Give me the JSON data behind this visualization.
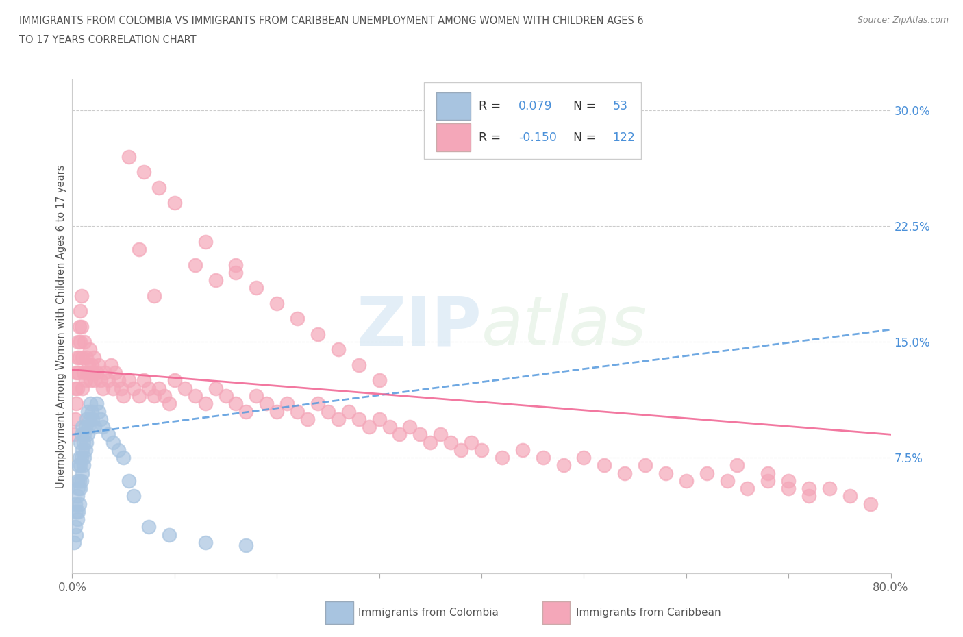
{
  "title_line1": "IMMIGRANTS FROM COLOMBIA VS IMMIGRANTS FROM CARIBBEAN UNEMPLOYMENT AMONG WOMEN WITH CHILDREN AGES 6",
  "title_line2": "TO 17 YEARS CORRELATION CHART",
  "source_text": "Source: ZipAtlas.com",
  "ylabel": "Unemployment Among Women with Children Ages 6 to 17 years",
  "xlim": [
    0.0,
    0.8
  ],
  "ylim": [
    0.0,
    0.32
  ],
  "xtick_positions": [
    0.0,
    0.1,
    0.2,
    0.3,
    0.4,
    0.5,
    0.6,
    0.7,
    0.8
  ],
  "xticklabels": [
    "0.0%",
    "",
    "",
    "",
    "",
    "",
    "",
    "",
    "80.0%"
  ],
  "ytick_positions": [
    0.0,
    0.075,
    0.15,
    0.225,
    0.3
  ],
  "ytick_labels": [
    "",
    "7.5%",
    "15.0%",
    "22.5%",
    "30.0%"
  ],
  "colombia_color": "#a8c4e0",
  "caribbean_color": "#f4a7b9",
  "colombia_line_color": "#5599dd",
  "caribbean_line_color": "#f06090",
  "colombia_R": 0.079,
  "colombia_N": 53,
  "caribbean_R": -0.15,
  "caribbean_N": 122,
  "watermark_zip": "ZIP",
  "watermark_atlas": "atlas",
  "colombia_trendline": [
    0.09,
    0.158
  ],
  "caribbean_trendline": [
    0.132,
    0.09
  ],
  "colombia_x": [
    0.002,
    0.003,
    0.003,
    0.004,
    0.004,
    0.005,
    0.005,
    0.005,
    0.006,
    0.006,
    0.006,
    0.007,
    0.007,
    0.007,
    0.008,
    0.008,
    0.008,
    0.009,
    0.009,
    0.009,
    0.01,
    0.01,
    0.01,
    0.011,
    0.011,
    0.012,
    0.012,
    0.013,
    0.013,
    0.014,
    0.014,
    0.015,
    0.015,
    0.016,
    0.017,
    0.018,
    0.019,
    0.02,
    0.022,
    0.024,
    0.026,
    0.028,
    0.03,
    0.035,
    0.04,
    0.045,
    0.05,
    0.055,
    0.06,
    0.075,
    0.095,
    0.13,
    0.17
  ],
  "colombia_y": [
    0.02,
    0.03,
    0.045,
    0.025,
    0.04,
    0.035,
    0.05,
    0.06,
    0.04,
    0.055,
    0.07,
    0.045,
    0.06,
    0.075,
    0.055,
    0.07,
    0.085,
    0.06,
    0.075,
    0.09,
    0.065,
    0.08,
    0.095,
    0.07,
    0.085,
    0.075,
    0.09,
    0.08,
    0.095,
    0.085,
    0.1,
    0.09,
    0.105,
    0.095,
    0.1,
    0.11,
    0.105,
    0.1,
    0.095,
    0.11,
    0.105,
    0.1,
    0.095,
    0.09,
    0.085,
    0.08,
    0.075,
    0.06,
    0.05,
    0.03,
    0.025,
    0.02,
    0.018
  ],
  "caribbean_x": [
    0.002,
    0.003,
    0.003,
    0.004,
    0.004,
    0.005,
    0.005,
    0.006,
    0.006,
    0.007,
    0.007,
    0.008,
    0.008,
    0.009,
    0.009,
    0.01,
    0.01,
    0.011,
    0.012,
    0.013,
    0.014,
    0.015,
    0.016,
    0.017,
    0.018,
    0.019,
    0.02,
    0.021,
    0.022,
    0.024,
    0.026,
    0.028,
    0.03,
    0.032,
    0.035,
    0.038,
    0.04,
    0.042,
    0.045,
    0.048,
    0.05,
    0.055,
    0.06,
    0.065,
    0.07,
    0.075,
    0.08,
    0.085,
    0.09,
    0.095,
    0.1,
    0.11,
    0.12,
    0.13,
    0.14,
    0.15,
    0.16,
    0.17,
    0.18,
    0.19,
    0.2,
    0.21,
    0.22,
    0.23,
    0.24,
    0.25,
    0.26,
    0.27,
    0.28,
    0.29,
    0.3,
    0.31,
    0.32,
    0.33,
    0.34,
    0.35,
    0.36,
    0.37,
    0.38,
    0.39,
    0.4,
    0.42,
    0.44,
    0.46,
    0.48,
    0.5,
    0.52,
    0.54,
    0.56,
    0.58,
    0.6,
    0.62,
    0.64,
    0.66,
    0.68,
    0.7,
    0.72,
    0.74,
    0.76,
    0.78,
    0.65,
    0.68,
    0.7,
    0.72,
    0.055,
    0.07,
    0.085,
    0.1,
    0.12,
    0.14,
    0.16,
    0.18,
    0.2,
    0.22,
    0.24,
    0.26,
    0.28,
    0.3,
    0.13,
    0.16,
    0.065,
    0.08
  ],
  "caribbean_y": [
    0.09,
    0.1,
    0.12,
    0.11,
    0.13,
    0.12,
    0.14,
    0.13,
    0.15,
    0.14,
    0.16,
    0.15,
    0.17,
    0.16,
    0.18,
    0.12,
    0.14,
    0.13,
    0.15,
    0.125,
    0.14,
    0.13,
    0.135,
    0.145,
    0.125,
    0.135,
    0.13,
    0.14,
    0.125,
    0.13,
    0.135,
    0.125,
    0.12,
    0.13,
    0.125,
    0.135,
    0.12,
    0.13,
    0.125,
    0.12,
    0.115,
    0.125,
    0.12,
    0.115,
    0.125,
    0.12,
    0.115,
    0.12,
    0.115,
    0.11,
    0.125,
    0.12,
    0.115,
    0.11,
    0.12,
    0.115,
    0.11,
    0.105,
    0.115,
    0.11,
    0.105,
    0.11,
    0.105,
    0.1,
    0.11,
    0.105,
    0.1,
    0.105,
    0.1,
    0.095,
    0.1,
    0.095,
    0.09,
    0.095,
    0.09,
    0.085,
    0.09,
    0.085,
    0.08,
    0.085,
    0.08,
    0.075,
    0.08,
    0.075,
    0.07,
    0.075,
    0.07,
    0.065,
    0.07,
    0.065,
    0.06,
    0.065,
    0.06,
    0.055,
    0.06,
    0.055,
    0.05,
    0.055,
    0.05,
    0.045,
    0.07,
    0.065,
    0.06,
    0.055,
    0.27,
    0.26,
    0.25,
    0.24,
    0.2,
    0.19,
    0.195,
    0.185,
    0.175,
    0.165,
    0.155,
    0.145,
    0.135,
    0.125,
    0.215,
    0.2,
    0.21,
    0.18
  ]
}
